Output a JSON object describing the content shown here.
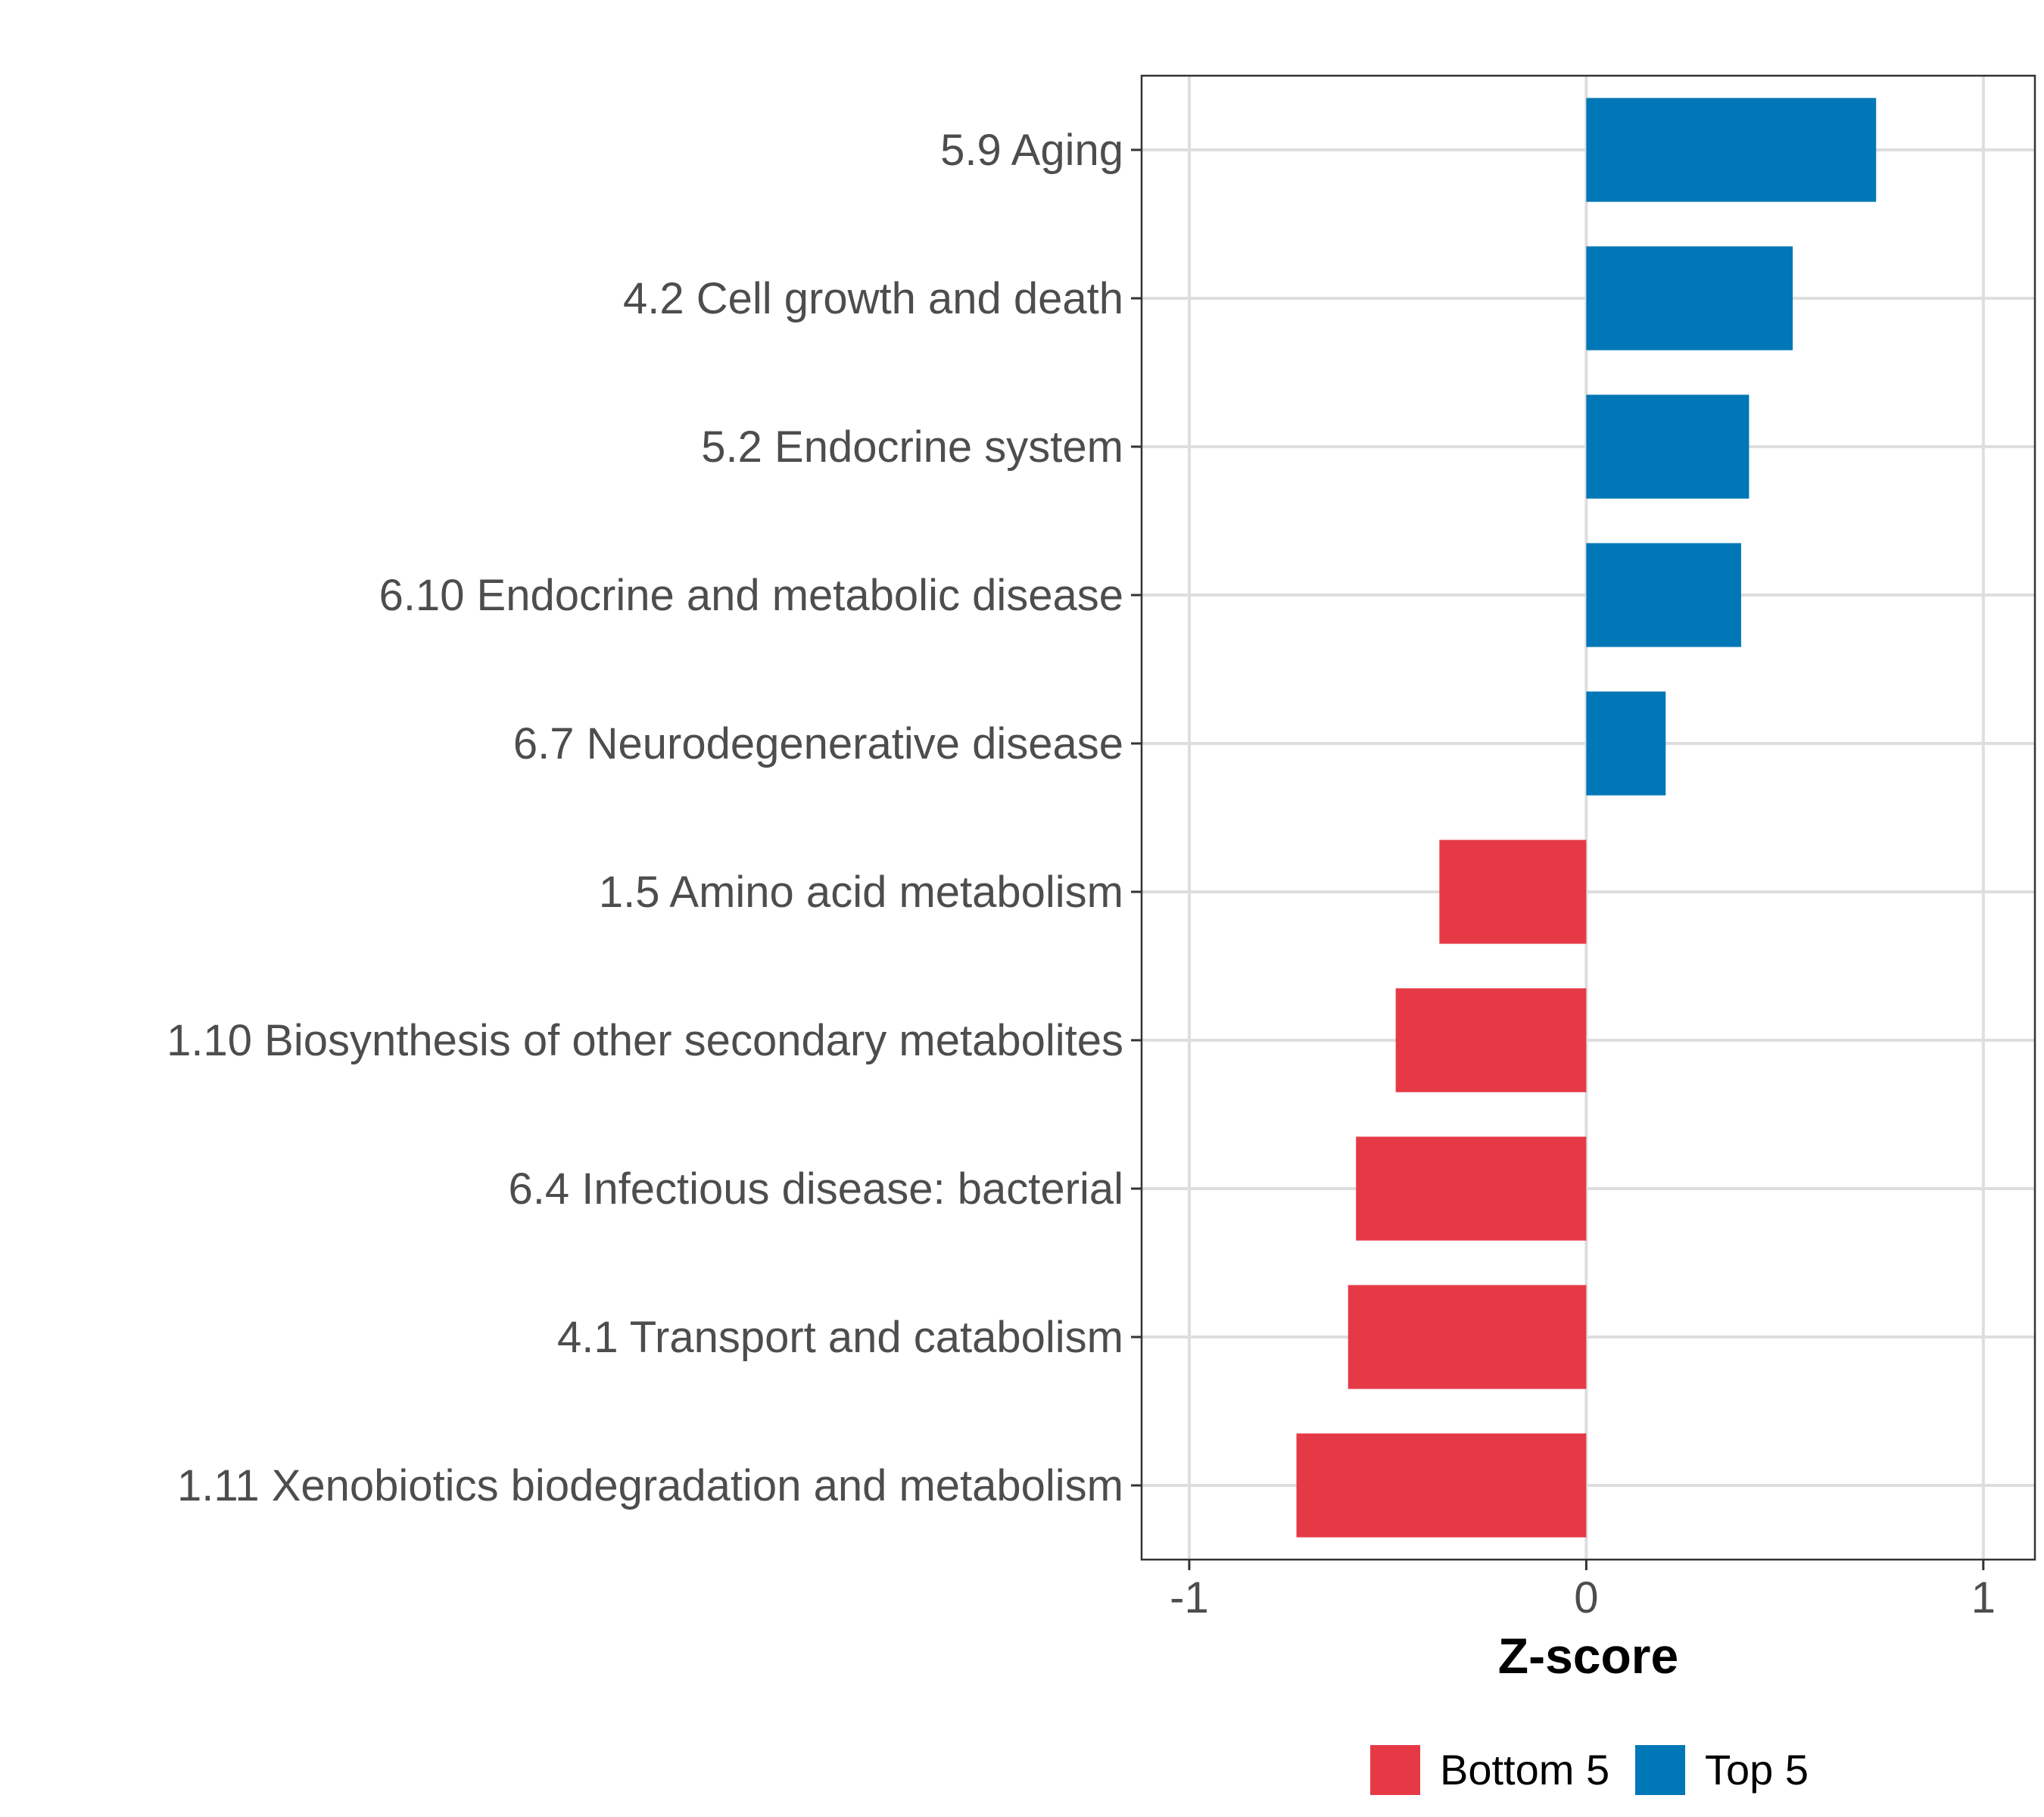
{
  "chart_data": {
    "type": "bar",
    "orientation": "horizontal",
    "title": "",
    "xlabel": "Z-score",
    "ylabel": "",
    "xlim": [
      -1.12,
      1.13
    ],
    "xticks": [
      -1,
      0,
      1
    ],
    "xtick_labels": [
      "-1",
      "0",
      "1"
    ],
    "grid": true,
    "categories": [
      "5.9 Aging",
      "4.2 Cell growth and death",
      "5.2 Endocrine system",
      "6.10 Endocrine and metabolic disease",
      "6.7 Neurodegenerative disease",
      "1.5 Amino acid metabolism",
      "1.10 Biosynthesis of other secondary metabolites",
      "6.4 Infectious disease: bacterial",
      "4.1 Transport and catabolism",
      "1.11 Xenobiotics biodegradation and metabolism"
    ],
    "values": [
      0.73,
      0.52,
      0.41,
      0.39,
      0.2,
      -0.37,
      -0.48,
      -0.58,
      -0.6,
      -0.73
    ],
    "groups": [
      "Top 5",
      "Top 5",
      "Top 5",
      "Top 5",
      "Top 5",
      "Bottom 5",
      "Bottom 5",
      "Bottom 5",
      "Bottom 5",
      "Bottom 5"
    ],
    "legend": {
      "position": "bottom",
      "entries": [
        {
          "label": "Bottom 5",
          "color": "#E63946"
        },
        {
          "label": "Top 5",
          "color": "#0077B6"
        }
      ]
    }
  }
}
